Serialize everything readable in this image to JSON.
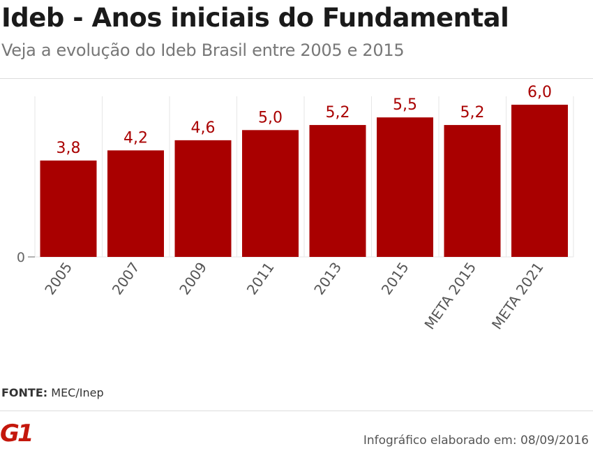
{
  "title": "Ideb - Anos iniciais do Fundamental",
  "subtitle": "Veja a evolução do Ideb Brasil entre 2005 e 2015",
  "source_label": "FONTE:",
  "source_value": "MEC/Inep",
  "logo_text": "G1",
  "credit": "Infográfico elaborado em: 08/09/2016",
  "colors": {
    "bar": "#a90000",
    "label": "#a90000",
    "grid": "#e6e6e6",
    "axis": "#666666"
  },
  "chart_data": {
    "type": "bar",
    "categories": [
      "2005",
      "2007",
      "2009",
      "2011",
      "2013",
      "2015",
      "META 2015",
      "META 2021"
    ],
    "values": [
      3.8,
      4.2,
      4.6,
      5.0,
      5.2,
      5.5,
      5.2,
      6.0
    ],
    "value_labels": [
      "3,8",
      "4,2",
      "4,6",
      "5,0",
      "5,2",
      "5,5",
      "5,2",
      "6,0"
    ],
    "y_ticks": [
      "0"
    ],
    "ylim": [
      0,
      6.0
    ],
    "grid": false
  }
}
